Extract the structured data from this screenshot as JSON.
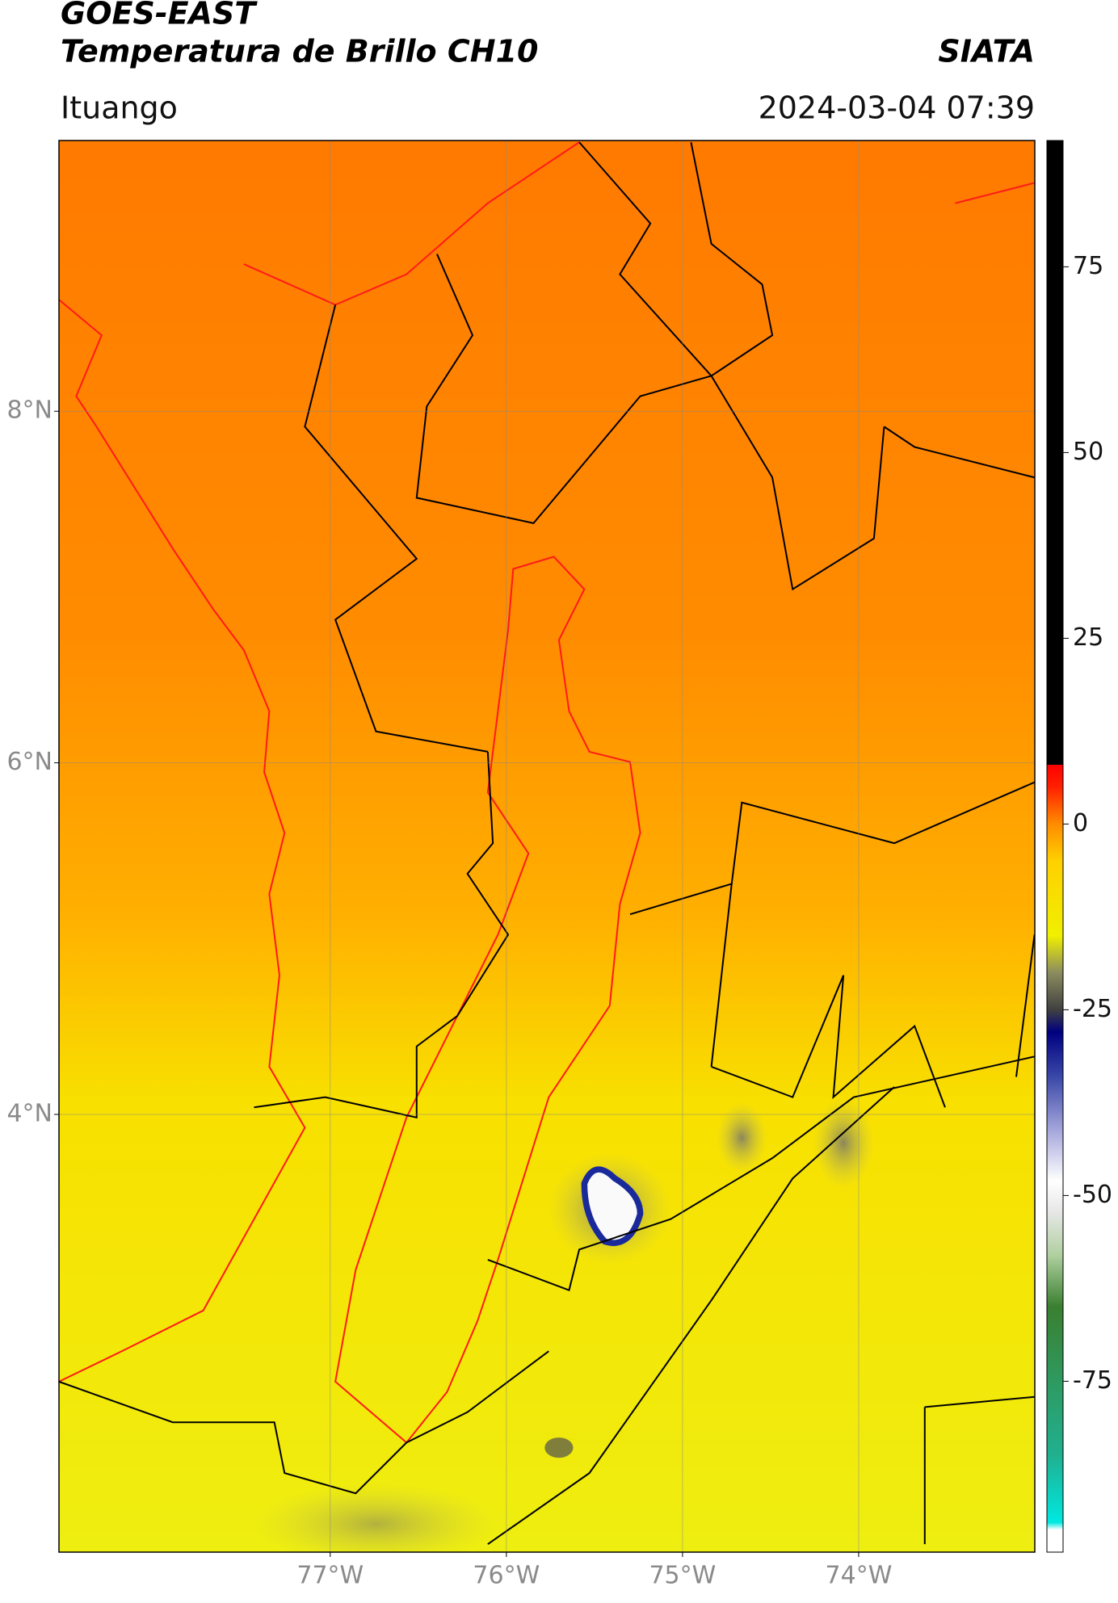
{
  "header": {
    "title": "GOES-EAST",
    "subtitle": "Temperatura de Brillo CH10",
    "source": "SIATA",
    "location": "Ituango",
    "datetime": "2024-03-04 07:39"
  },
  "map": {
    "lon_lim": [
      -78.54,
      -73.0
    ],
    "lat_lim": [
      1.51,
      9.54
    ],
    "lon_ticks": [
      {
        "value": -77,
        "label": "77°W"
      },
      {
        "value": -76,
        "label": "76°W"
      },
      {
        "value": -75,
        "label": "75°W"
      },
      {
        "value": -74,
        "label": "74°W"
      }
    ],
    "lat_ticks": [
      {
        "value": 8,
        "label": "8°N"
      },
      {
        "value": 6,
        "label": "6°N"
      },
      {
        "value": 4,
        "label": "4°N"
      }
    ],
    "grid": true
  },
  "colorbar": {
    "lim": [
      -98,
      92
    ],
    "ticks": [
      -75,
      -50,
      -25,
      0,
      25,
      50,
      75
    ],
    "stops": [
      {
        "value": -98,
        "color": "#ffffff"
      },
      {
        "value": -95,
        "color": "#ffffff"
      },
      {
        "value": -94,
        "color": "#00e8e0"
      },
      {
        "value": -85,
        "color": "#20b090"
      },
      {
        "value": -75,
        "color": "#2e9a60"
      },
      {
        "value": -65,
        "color": "#3a7f30"
      },
      {
        "value": -58,
        "color": "#b0d0a0"
      },
      {
        "value": -52,
        "color": "#e8e8e8"
      },
      {
        "value": -48,
        "color": "#ffffff"
      },
      {
        "value": -42,
        "color": "#b0b0e0"
      },
      {
        "value": -34,
        "color": "#3a48a8"
      },
      {
        "value": -28,
        "color": "#000080"
      },
      {
        "value": -25,
        "color": "#404040"
      },
      {
        "value": -20,
        "color": "#8c8c60"
      },
      {
        "value": -15,
        "color": "#f0f000"
      },
      {
        "value": -5,
        "color": "#ffd000"
      },
      {
        "value": 0,
        "color": "#ff8c00"
      },
      {
        "value": 5,
        "color": "#ff2000"
      },
      {
        "value": 8,
        "color": "#ff0000"
      },
      {
        "value": 8,
        "color": "#000000"
      },
      {
        "value": 92,
        "color": "#000000"
      }
    ]
  }
}
